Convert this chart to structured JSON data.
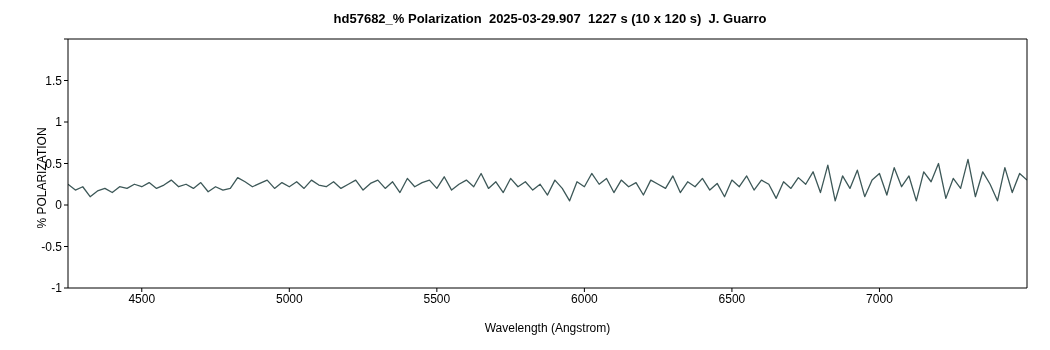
{
  "chart_data": {
    "type": "line",
    "title": "hd57682_% Polarization  2025-03-29.907  1227 s (10 x 120 s)  J. Guarro",
    "xlabel": "Wavelength (Angstrom)",
    "ylabel": "% POLARIZATION",
    "x": [
      4250,
      4275,
      4300,
      4325,
      4350,
      4375,
      4400,
      4425,
      4450,
      4475,
      4500,
      4525,
      4550,
      4575,
      4600,
      4625,
      4650,
      4675,
      4700,
      4725,
      4750,
      4775,
      4800,
      4825,
      4850,
      4875,
      4900,
      4925,
      4950,
      4975,
      5000,
      5025,
      5050,
      5075,
      5100,
      5125,
      5150,
      5175,
      5200,
      5225,
      5250,
      5275,
      5300,
      5325,
      5350,
      5375,
      5400,
      5425,
      5450,
      5475,
      5500,
      5525,
      5550,
      5575,
      5600,
      5625,
      5650,
      5675,
      5700,
      5725,
      5750,
      5775,
      5800,
      5825,
      5850,
      5875,
      5900,
      5925,
      5950,
      5975,
      6000,
      6025,
      6050,
      6075,
      6100,
      6125,
      6150,
      6175,
      6200,
      6225,
      6250,
      6275,
      6300,
      6325,
      6350,
      6375,
      6400,
      6425,
      6450,
      6475,
      6500,
      6525,
      6550,
      6575,
      6600,
      6625,
      6650,
      6675,
      6700,
      6725,
      6750,
      6775,
      6800,
      6825,
      6850,
      6875,
      6900,
      6925,
      6950,
      6975,
      7000,
      7025,
      7050,
      7075,
      7100,
      7125,
      7150,
      7175,
      7200,
      7225,
      7250,
      7275,
      7300,
      7325,
      7350,
      7375,
      7400,
      7425,
      7450,
      7475,
      7500
    ],
    "series": [
      {
        "color": "#3d5858",
        "values": [
          0.25,
          0.18,
          0.22,
          0.1,
          0.17,
          0.2,
          0.15,
          0.22,
          0.2,
          0.25,
          0.22,
          0.27,
          0.2,
          0.24,
          0.3,
          0.22,
          0.25,
          0.2,
          0.27,
          0.16,
          0.22,
          0.18,
          0.2,
          0.33,
          0.28,
          0.22,
          0.26,
          0.3,
          0.2,
          0.27,
          0.22,
          0.28,
          0.2,
          0.3,
          0.24,
          0.22,
          0.28,
          0.2,
          0.25,
          0.3,
          0.18,
          0.26,
          0.3,
          0.2,
          0.28,
          0.15,
          0.32,
          0.22,
          0.27,
          0.3,
          0.2,
          0.34,
          0.18,
          0.25,
          0.3,
          0.22,
          0.38,
          0.2,
          0.28,
          0.15,
          0.32,
          0.22,
          0.28,
          0.18,
          0.25,
          0.12,
          0.3,
          0.2,
          0.05,
          0.28,
          0.22,
          0.38,
          0.25,
          0.32,
          0.15,
          0.3,
          0.22,
          0.27,
          0.12,
          0.3,
          0.25,
          0.2,
          0.35,
          0.15,
          0.28,
          0.22,
          0.32,
          0.18,
          0.26,
          0.1,
          0.3,
          0.22,
          0.35,
          0.18,
          0.3,
          0.25,
          0.08,
          0.28,
          0.2,
          0.33,
          0.25,
          0.4,
          0.15,
          0.48,
          0.05,
          0.35,
          0.2,
          0.42,
          0.1,
          0.3,
          0.38,
          0.12,
          0.45,
          0.22,
          0.35,
          0.05,
          0.4,
          0.28,
          0.5,
          0.08,
          0.32,
          0.2,
          0.55,
          0.1,
          0.4,
          0.25,
          0.05,
          0.45,
          0.15,
          0.38,
          0.3
        ]
      }
    ],
    "xlim": [
      4250,
      7500
    ],
    "xticks": [
      4500,
      5000,
      5500,
      6000,
      6500,
      7000
    ],
    "ylim": [
      -1,
      2
    ],
    "yticks": [
      -1,
      -0.5,
      0,
      0.5,
      1,
      1.5,
      {
        "value": 2,
        "label": null
      }
    ],
    "grid": false,
    "legend": false,
    "marker": "none",
    "line_style": "solid"
  }
}
